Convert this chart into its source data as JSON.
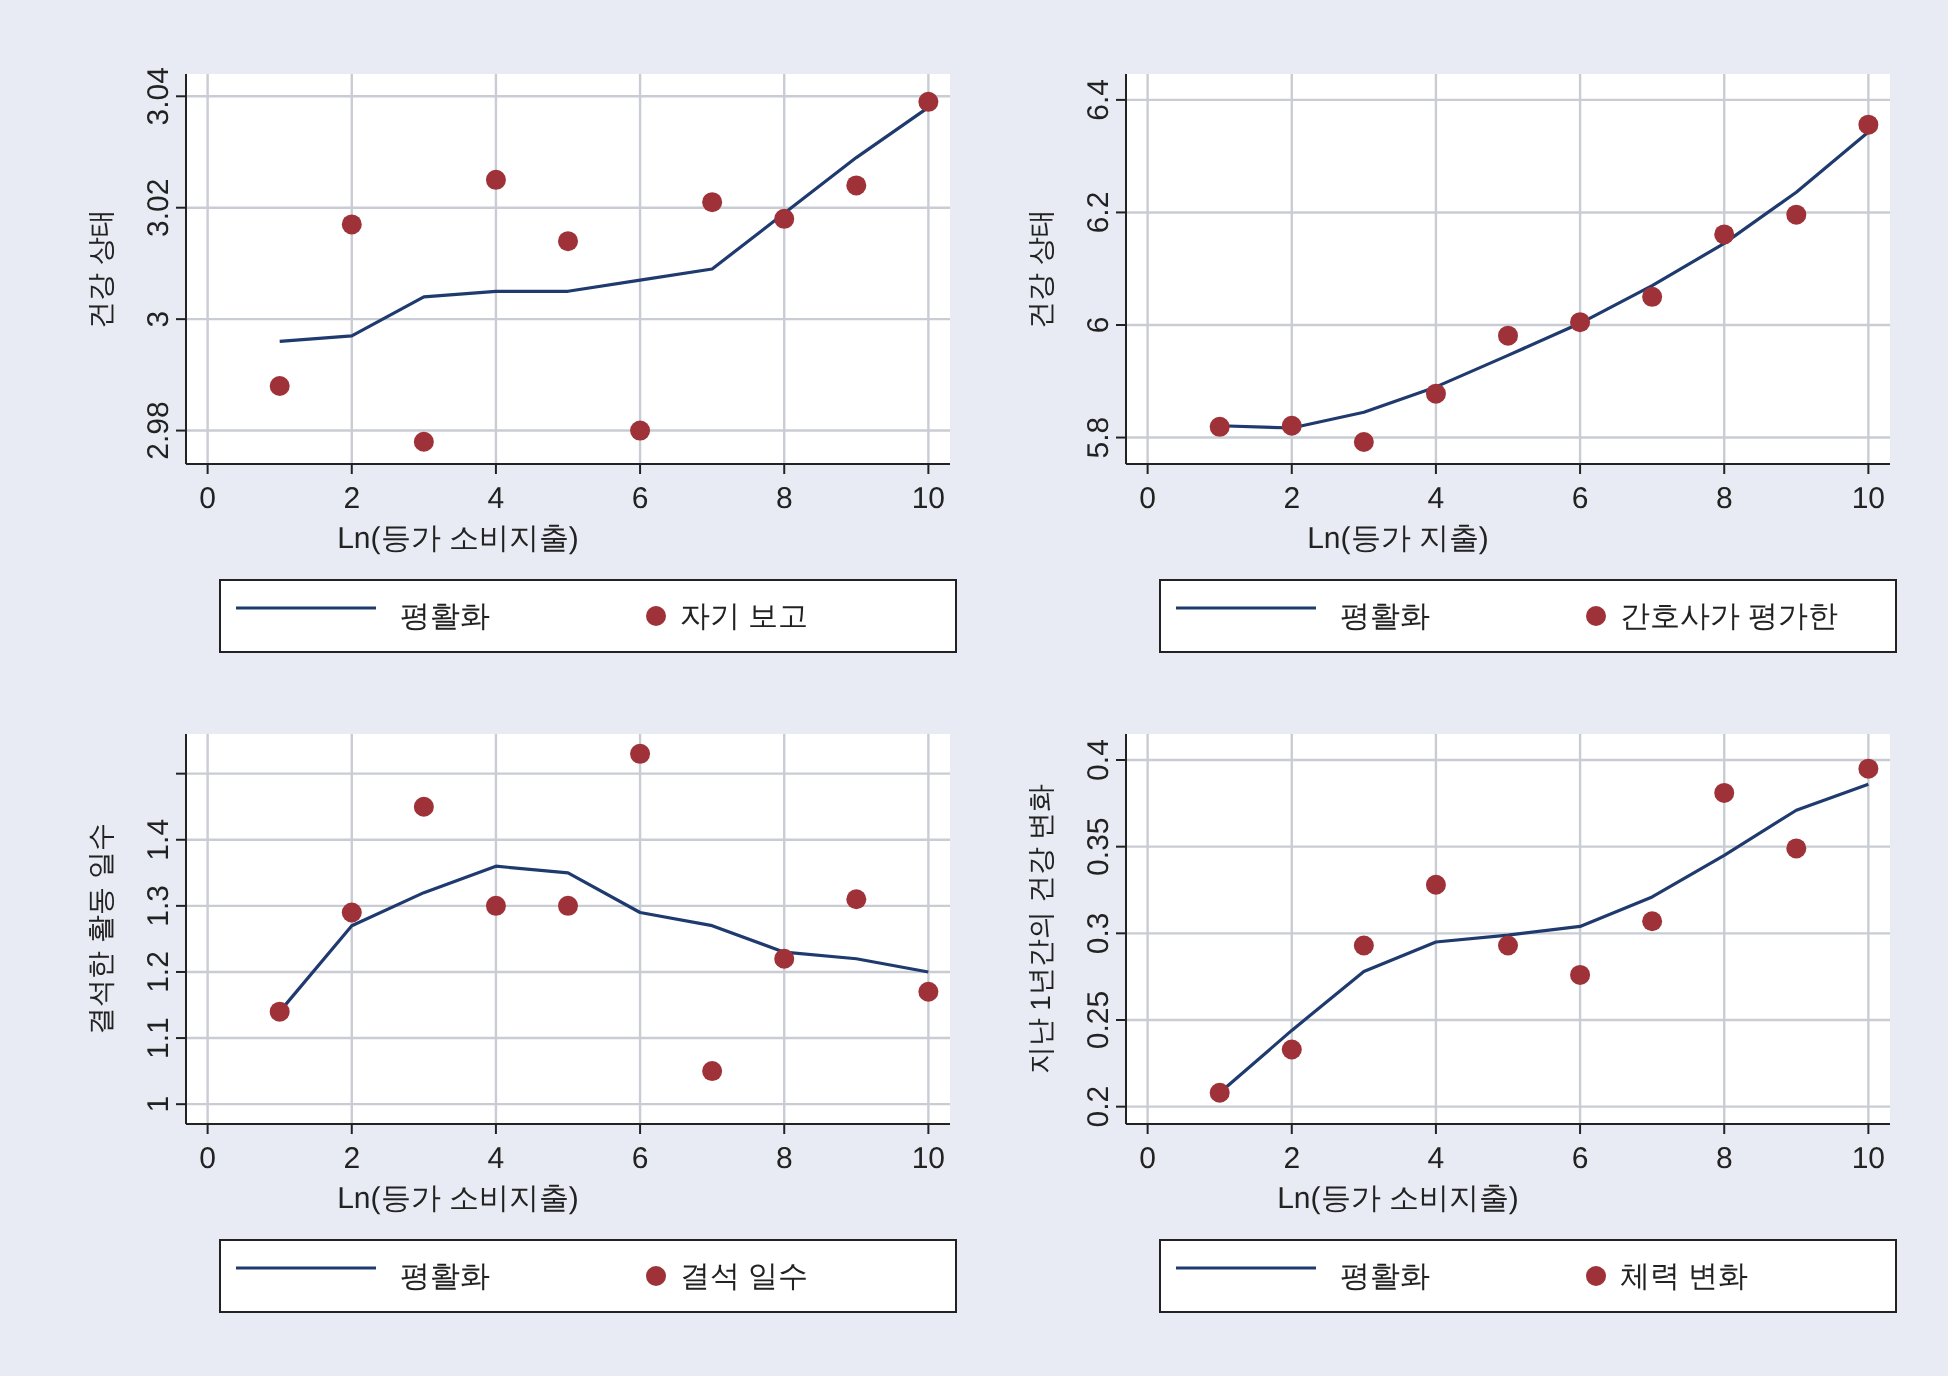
{
  "chart_data": [
    {
      "type": "scatter",
      "xlabel": "Ln(등가 소비지출)",
      "ylabel": "건강 상태",
      "x": [
        1,
        2,
        3,
        4,
        5,
        6,
        7,
        8,
        9,
        10
      ],
      "xlim": [
        -0.3,
        10.3
      ],
      "xticks": [
        0,
        2,
        4,
        6,
        8,
        10
      ],
      "ylim": [
        2.974,
        3.044
      ],
      "yticks": [
        2.98,
        3,
        3.02,
        3.04
      ],
      "grid": true,
      "legend": "bottom",
      "series": [
        {
          "name": "평활화",
          "type": "line",
          "color": "#1f3a6e",
          "values": [
            2.996,
            2.997,
            3.004,
            3.005,
            3.005,
            3.007,
            3.009,
            3.019,
            3.029,
            3.038
          ]
        },
        {
          "name": "자기 보고",
          "marker": "circle",
          "color": "#9e3238",
          "values": [
            2.988,
            3.017,
            2.978,
            3.025,
            3.014,
            2.98,
            3.021,
            3.018,
            3.024,
            3.039
          ]
        }
      ]
    },
    {
      "type": "scatter",
      "xlabel": "Ln(등가 지출)",
      "ylabel": "건강 상태",
      "x": [
        1,
        2,
        3,
        4,
        5,
        6,
        7,
        8,
        9,
        10
      ],
      "xlim": [
        -0.3,
        10.3
      ],
      "xticks": [
        0,
        2,
        4,
        6,
        8,
        10
      ],
      "ylim": [
        5.753,
        6.446
      ],
      "yticks": [
        5.8,
        6,
        6.2,
        6.4
      ],
      "grid": true,
      "legend": "bottom",
      "series": [
        {
          "name": "평활화",
          "type": "line",
          "color": "#1f3a6e",
          "values": [
            5.821,
            5.817,
            5.845,
            5.89,
            5.946,
            6.003,
            6.07,
            6.145,
            6.236,
            6.343
          ]
        },
        {
          "name": "간호사가 평가한",
          "marker": "circle",
          "color": "#9e3238",
          "values": [
            5.819,
            5.821,
            5.792,
            5.878,
            5.981,
            6.005,
            6.05,
            6.161,
            6.196,
            6.356
          ]
        }
      ]
    },
    {
      "type": "scatter",
      "xlabel": "Ln(등가 소비지출)",
      "ylabel": "결석한 활동 일수",
      "x": [
        1,
        2,
        3,
        4,
        5,
        6,
        7,
        8,
        9,
        10
      ],
      "xlim": [
        -0.3,
        10.3
      ],
      "xticks": [
        0,
        2,
        4,
        6,
        8,
        10
      ],
      "ylim": [
        0.97,
        1.56
      ],
      "yticks": [
        1,
        1.1,
        1.2,
        1.3,
        1.4,
        {
          "value": 1.5,
          "label": null
        }
      ],
      "grid": true,
      "legend": "bottom",
      "series": [
        {
          "name": "평활화",
          "type": "line",
          "color": "#1f3a6e",
          "values": [
            1.14,
            1.27,
            1.32,
            1.36,
            1.35,
            1.29,
            1.27,
            1.23,
            1.22,
            1.2
          ]
        },
        {
          "name": "결석 일수",
          "marker": "circle",
          "color": "#9e3238",
          "values": [
            1.14,
            1.29,
            1.45,
            1.3,
            1.3,
            1.53,
            1.05,
            1.22,
            1.31,
            1.17
          ]
        }
      ]
    },
    {
      "type": "scatter",
      "xlabel": "Ln(등가 소비지출)",
      "ylabel": "지난 1년간의 건강 변화",
      "x": [
        1,
        2,
        3,
        4,
        5,
        6,
        7,
        8,
        9,
        10
      ],
      "xlim": [
        -0.3,
        10.3
      ],
      "xticks": [
        0,
        2,
        4,
        6,
        8,
        10
      ],
      "ylim": [
        0.19,
        0.415
      ],
      "yticks": [
        0.2,
        0.25,
        0.3,
        0.35,
        0.4
      ],
      "grid": true,
      "legend": "bottom",
      "series": [
        {
          "name": "평활화",
          "type": "line",
          "color": "#1f3a6e",
          "values": [
            0.208,
            0.244,
            0.278,
            0.295,
            0.299,
            0.304,
            0.321,
            0.345,
            0.371,
            0.386
          ]
        },
        {
          "name": "체력 변화",
          "marker": "circle",
          "color": "#9e3238",
          "values": [
            0.208,
            0.233,
            0.293,
            0.328,
            0.293,
            0.276,
            0.307,
            0.381,
            0.349,
            0.395
          ]
        }
      ]
    }
  ]
}
